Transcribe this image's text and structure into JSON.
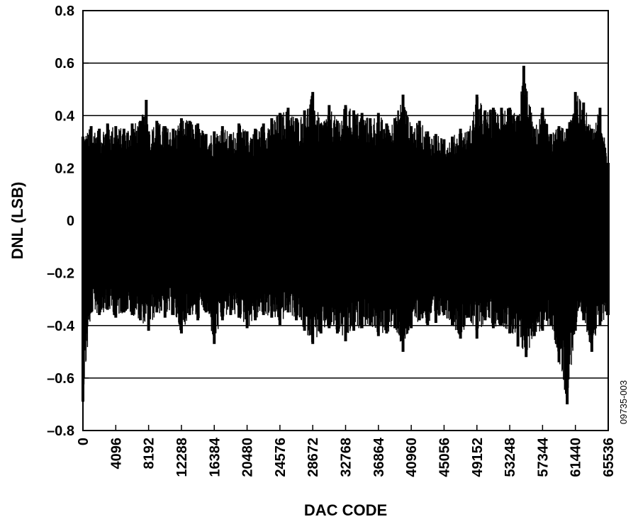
{
  "chart_data": {
    "type": "line",
    "title": "",
    "xlabel": "DAC CODE",
    "ylabel": "DNL (LSB)",
    "xlim": [
      0,
      65536
    ],
    "ylim": [
      -0.8,
      0.8
    ],
    "grid": "horizontal",
    "x_ticks": [
      0,
      4096,
      8192,
      12288,
      16384,
      20480,
      24576,
      28672,
      32768,
      36864,
      40960,
      45056,
      49152,
      53248,
      57344,
      61440,
      65536
    ],
    "x_tick_labels": [
      "0",
      "4096",
      "8192",
      "12288",
      "16384",
      "20480",
      "24576",
      "28672",
      "32768",
      "36864",
      "40960",
      "45056",
      "49152",
      "53248",
      "57344",
      "61440",
      "65536"
    ],
    "y_ticks": [
      0.8,
      0.6,
      0.4,
      0.2,
      0,
      -0.2,
      -0.4,
      -0.6,
      -0.8
    ],
    "y_tick_labels": [
      "0.8",
      "0.6",
      "0.4",
      "0.2",
      "0",
      "–0.2",
      "–0.4",
      "–0.6",
      "–0.8"
    ],
    "series": [
      {
        "color": "#000000",
        "envelope_max": {
          "x": [
            0,
            1024,
            2048,
            3072,
            4096,
            5120,
            6144,
            7168,
            7900,
            8192,
            9216,
            10240,
            11264,
            12288,
            13312,
            14336,
            15360,
            16384,
            17408,
            18432,
            19456,
            20480,
            21504,
            22528,
            23552,
            24576,
            25600,
            26624,
            27648,
            28672,
            29696,
            30720,
            31744,
            32768,
            33792,
            34816,
            35840,
            36864,
            37888,
            38912,
            39936,
            40960,
            41984,
            43008,
            44032,
            45056,
            46080,
            47104,
            48128,
            49152,
            50176,
            51200,
            52224,
            53248,
            54272,
            55000,
            56320,
            57344,
            58368,
            59392,
            60416,
            61440,
            62464,
            63488,
            64512,
            65536
          ],
          "y": [
            0.32,
            0.36,
            0.35,
            0.37,
            0.36,
            0.35,
            0.37,
            0.38,
            0.46,
            0.34,
            0.38,
            0.36,
            0.35,
            0.39,
            0.38,
            0.37,
            0.33,
            0.34,
            0.36,
            0.33,
            0.37,
            0.34,
            0.35,
            0.37,
            0.39,
            0.41,
            0.43,
            0.39,
            0.42,
            0.49,
            0.37,
            0.44,
            0.38,
            0.44,
            0.42,
            0.41,
            0.39,
            0.41,
            0.37,
            0.39,
            0.48,
            0.36,
            0.38,
            0.34,
            0.33,
            0.31,
            0.32,
            0.35,
            0.34,
            0.48,
            0.42,
            0.43,
            0.43,
            0.43,
            0.4,
            0.59,
            0.35,
            0.43,
            0.33,
            0.36,
            0.35,
            0.49,
            0.45,
            0.35,
            0.43,
            0.22
          ]
        },
        "envelope_min": {
          "x": [
            0,
            1024,
            2048,
            3072,
            4096,
            5120,
            6144,
            7168,
            8192,
            9216,
            10240,
            11264,
            12288,
            13312,
            14336,
            15360,
            16384,
            17408,
            18432,
            19456,
            20480,
            21504,
            22528,
            23552,
            24576,
            25600,
            26624,
            27648,
            28672,
            29696,
            30720,
            31744,
            32768,
            33792,
            34816,
            35840,
            36864,
            37888,
            38912,
            39936,
            40960,
            41984,
            43008,
            44032,
            45056,
            46080,
            47104,
            48128,
            49152,
            50176,
            51200,
            52224,
            53248,
            54272,
            55296,
            56320,
            57344,
            58368,
            59392,
            60416,
            61440,
            62464,
            63488,
            64512,
            65536
          ],
          "y": [
            -0.69,
            -0.35,
            -0.36,
            -0.34,
            -0.37,
            -0.35,
            -0.36,
            -0.38,
            -0.42,
            -0.35,
            -0.37,
            -0.36,
            -0.43,
            -0.36,
            -0.38,
            -0.35,
            -0.47,
            -0.38,
            -0.36,
            -0.37,
            -0.41,
            -0.38,
            -0.36,
            -0.37,
            -0.4,
            -0.35,
            -0.38,
            -0.42,
            -0.47,
            -0.43,
            -0.41,
            -0.43,
            -0.46,
            -0.42,
            -0.41,
            -0.4,
            -0.44,
            -0.43,
            -0.41,
            -0.5,
            -0.41,
            -0.38,
            -0.4,
            -0.39,
            -0.36,
            -0.4,
            -0.45,
            -0.37,
            -0.45,
            -0.38,
            -0.41,
            -0.4,
            -0.43,
            -0.48,
            -0.52,
            -0.44,
            -0.42,
            -0.4,
            -0.54,
            -0.7,
            -0.42,
            -0.38,
            -0.5,
            -0.4,
            -0.36
          ]
        }
      }
    ]
  },
  "figure_id": "09735-003"
}
